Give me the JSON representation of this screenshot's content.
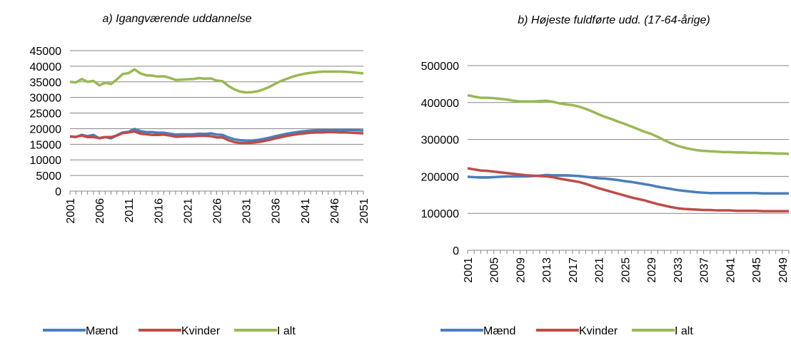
{
  "chart_data": [
    {
      "type": "line",
      "title": "a) Igangværende uddannelse",
      "x": [
        2001,
        2002,
        2003,
        2004,
        2005,
        2006,
        2007,
        2008,
        2009,
        2010,
        2011,
        2012,
        2013,
        2014,
        2015,
        2016,
        2017,
        2018,
        2019,
        2020,
        2021,
        2022,
        2023,
        2024,
        2025,
        2026,
        2027,
        2028,
        2029,
        2030,
        2031,
        2032,
        2033,
        2034,
        2035,
        2036,
        2037,
        2038,
        2039,
        2040,
        2041,
        2042,
        2043,
        2044,
        2045,
        2046,
        2047,
        2048,
        2049,
        2050,
        2051
      ],
      "xlim": [
        2001,
        2051
      ],
      "xticks": [
        2001,
        2006,
        2011,
        2016,
        2021,
        2026,
        2031,
        2036,
        2041,
        2046,
        2051
      ],
      "ylim": [
        0,
        45000
      ],
      "yticks": [
        0,
        5000,
        10000,
        15000,
        20000,
        25000,
        30000,
        35000,
        40000,
        45000
      ],
      "grid": true,
      "series": [
        {
          "name": "Mænd",
          "color": "#4a7ebb",
          "values": [
            17500,
            17300,
            18000,
            17600,
            18000,
            16900,
            17300,
            16900,
            17900,
            18800,
            19000,
            19900,
            19200,
            18900,
            18900,
            18700,
            18700,
            18400,
            18100,
            18200,
            18200,
            18200,
            18400,
            18300,
            18500,
            18100,
            18000,
            17200,
            16600,
            16300,
            16200,
            16200,
            16400,
            16700,
            17100,
            17600,
            18000,
            18400,
            18700,
            19000,
            19200,
            19400,
            19500,
            19600,
            19600,
            19600,
            19600,
            19600,
            19600,
            19500,
            19400
          ]
        },
        {
          "name": "Kvinder",
          "color": "#be4b48",
          "values": [
            17500,
            17400,
            17800,
            17300,
            17300,
            17000,
            17300,
            17300,
            17800,
            18600,
            18800,
            19100,
            18400,
            18200,
            18000,
            18000,
            18100,
            17800,
            17400,
            17500,
            17600,
            17600,
            17700,
            17700,
            17600,
            17200,
            17200,
            16300,
            15700,
            15400,
            15400,
            15500,
            15700,
            16000,
            16400,
            16900,
            17300,
            17700,
            18000,
            18300,
            18500,
            18700,
            18800,
            18800,
            18900,
            18900,
            18800,
            18800,
            18700,
            18600,
            18500
          ]
        },
        {
          "name": "I alt",
          "color": "#98b954",
          "values": [
            35000,
            34800,
            35900,
            35000,
            35300,
            33900,
            34700,
            34300,
            35800,
            37500,
            37800,
            39000,
            37700,
            37100,
            37000,
            36700,
            36800,
            36300,
            35600,
            35700,
            35800,
            35900,
            36200,
            36000,
            36100,
            35400,
            35200,
            33700,
            32600,
            31900,
            31600,
            31700,
            32000,
            32600,
            33400,
            34400,
            35300,
            36000,
            36700,
            37200,
            37600,
            37900,
            38100,
            38300,
            38300,
            38300,
            38300,
            38200,
            38100,
            37900,
            37700
          ]
        }
      ]
    },
    {
      "type": "line",
      "title": "b) Højeste fuldførte udd. (17-64-årige)",
      "x": [
        2001,
        2002,
        2003,
        2004,
        2005,
        2006,
        2007,
        2008,
        2009,
        2010,
        2011,
        2012,
        2013,
        2014,
        2015,
        2016,
        2017,
        2018,
        2019,
        2020,
        2021,
        2022,
        2023,
        2024,
        2025,
        2026,
        2027,
        2028,
        2029,
        2030,
        2031,
        2032,
        2033,
        2034,
        2035,
        2036,
        2037,
        2038,
        2039,
        2040,
        2041,
        2042,
        2043,
        2044,
        2045,
        2046,
        2047,
        2048,
        2049,
        2050
      ],
      "xlim": [
        2001,
        2050
      ],
      "xticks": [
        2001,
        2005,
        2009,
        2013,
        2017,
        2021,
        2025,
        2029,
        2033,
        2037,
        2041,
        2045,
        2049
      ],
      "ylim": [
        0,
        500000
      ],
      "yticks": [
        0,
        100000,
        200000,
        300000,
        400000,
        500000
      ],
      "grid": true,
      "series": [
        {
          "name": "Mænd",
          "color": "#4a7ebb",
          "values": [
            199000,
            198000,
            197000,
            197000,
            198000,
            199000,
            200000,
            200000,
            200000,
            200000,
            201000,
            202000,
            204000,
            203000,
            203000,
            203000,
            202000,
            201000,
            199000,
            197000,
            195000,
            194000,
            192000,
            190000,
            187000,
            185000,
            182000,
            179000,
            176000,
            172000,
            169000,
            166000,
            163000,
            161000,
            159000,
            157000,
            156000,
            155000,
            155000,
            155000,
            155000,
            155000,
            155000,
            155000,
            155000,
            154000,
            154000,
            154000,
            154000,
            154000
          ]
        },
        {
          "name": "Kvinder",
          "color": "#be4b48",
          "values": [
            222000,
            219000,
            216000,
            215000,
            213000,
            211000,
            209000,
            207000,
            205000,
            203000,
            202000,
            201000,
            200000,
            198000,
            194000,
            191000,
            188000,
            185000,
            180000,
            174000,
            168000,
            163000,
            158000,
            153000,
            148000,
            143000,
            139000,
            135000,
            130000,
            125000,
            121000,
            117000,
            114000,
            112000,
            111000,
            110000,
            109000,
            109000,
            108000,
            108000,
            108000,
            107000,
            107000,
            107000,
            107000,
            106000,
            106000,
            106000,
            106000,
            106000
          ]
        },
        {
          "name": "I alt",
          "color": "#98b954",
          "values": [
            420000,
            416000,
            413000,
            413000,
            412000,
            410000,
            408000,
            405000,
            403000,
            403000,
            403000,
            404000,
            405000,
            402000,
            398000,
            395000,
            393000,
            389000,
            383000,
            376000,
            368000,
            361000,
            355000,
            348000,
            342000,
            335000,
            328000,
            321000,
            315000,
            307000,
            298000,
            290000,
            283000,
            278000,
            274000,
            271000,
            269000,
            268000,
            267000,
            266000,
            266000,
            265000,
            265000,
            264000,
            264000,
            263000,
            263000,
            262000,
            262000,
            261000
          ]
        }
      ]
    }
  ]
}
